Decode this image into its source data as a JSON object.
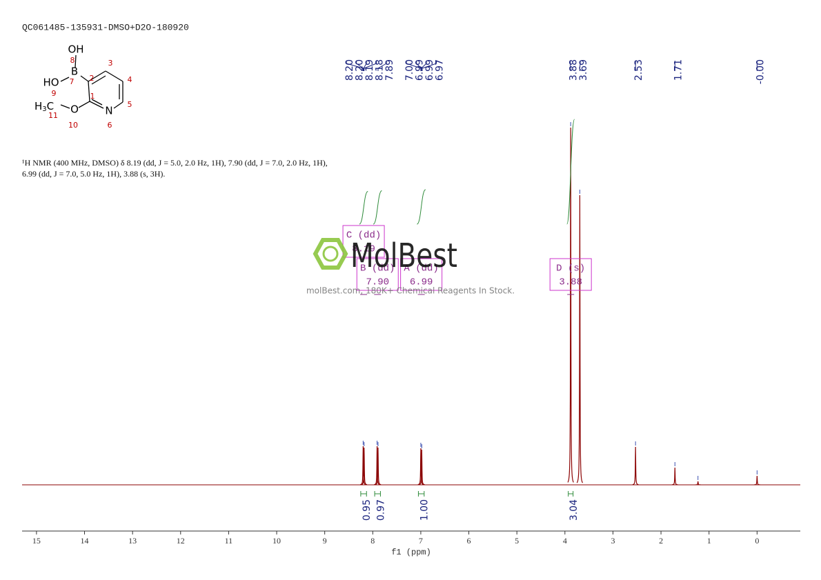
{
  "header": {
    "title": "QC061485-135931-DMSO+D2O-180920"
  },
  "structure": {
    "atoms": [
      "OH",
      "B",
      "HO",
      "O",
      "N"
    ],
    "methyl": {
      "h": "H",
      "sub": "3",
      "c": "C"
    },
    "numbers": [
      1,
      2,
      3,
      4,
      5,
      6,
      7,
      8,
      9,
      10,
      11
    ]
  },
  "description": [
    "¹H NMR (400 MHz, DMSO) δ 8.19 (dd, J = 5.0, 2.0 Hz, 1H), 7.90 (dd, J = 7.0, 2.0 Hz, 1H),",
    "6.99 (dd, J = 7.0, 5.0 Hz, 1H), 3.88 (s, 3H)."
  ],
  "watermark": {
    "brand": "MolBest",
    "tagline": "molBest.com, 180K+ Chemical Reagents In Stock."
  },
  "chart_data": {
    "type": "nmr",
    "x_label": "f1 (ppm)",
    "xlim": [
      15.3,
      -0.9
    ],
    "xticks": [
      15,
      14,
      13,
      12,
      11,
      10,
      9,
      8,
      7,
      6,
      5,
      4,
      3,
      2,
      1,
      0
    ],
    "ylim": [
      0,
      540
    ],
    "color": "#8b0000",
    "peaks": {
      "x": [
        8.2,
        8.18,
        7.91,
        7.89,
        7.0,
        6.98,
        3.88,
        3.69,
        2.53,
        1.71,
        1.23,
        0
      ],
      "heights": [
        56,
        54,
        56,
        54,
        53,
        51,
        518,
        420,
        55,
        25,
        5,
        13
      ]
    },
    "peak_labels": [
      {
        "value": 8.2,
        "label": "8.20"
      },
      {
        "value": 8.2,
        "label": "8.20"
      },
      8.19,
      8.18,
      7.89,
      {
        "value": 7.0,
        "label": "7.00"
      },
      6.99,
      6.99,
      6.97,
      3.88,
      3.69,
      2.53,
      1.71,
      {
        "value": 0,
        "label": "-0.00"
      }
    ],
    "integrals": {
      "ranges": [
        [
          8.25,
          8.13
        ],
        [
          7.96,
          7.84
        ],
        [
          7.05,
          6.93
        ],
        [
          3.93,
          3.83
        ]
      ],
      "values": [
        0.95,
        0.97,
        {
          "value": 1,
          "label": "1.00"
        },
        3.04
      ]
    },
    "multiplets": [
      {
        "name": "C (dd)",
        "shift": 8.19
      },
      {
        "name": "B (dd)",
        "shift": {
          "value": 7.9,
          "label": "7.90"
        }
      },
      {
        "name": "A (dd)",
        "shift": 6.99
      },
      {
        "name": "D (s)",
        "shift": 3.88
      }
    ]
  }
}
